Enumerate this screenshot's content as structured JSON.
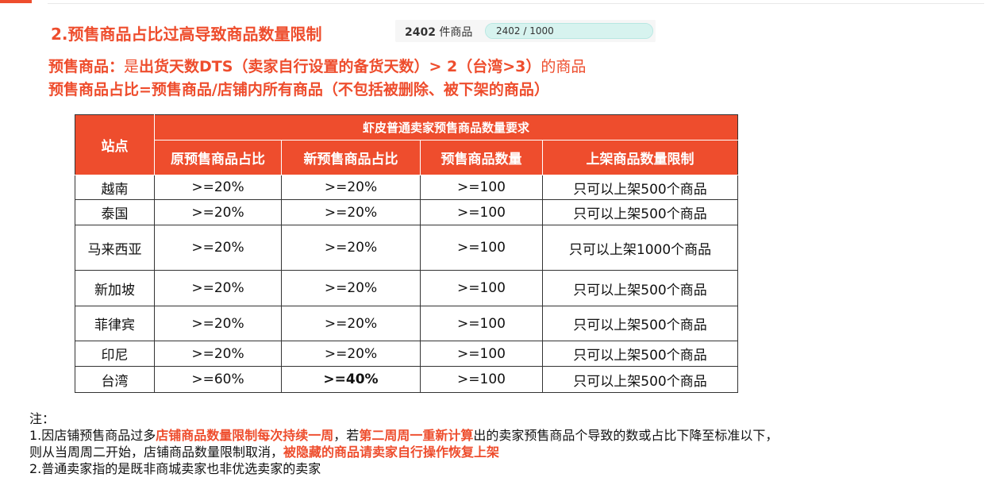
{
  "title": "2.预售商品占比过高导致商品数量限制",
  "count_badge": {
    "count_number": "2402",
    "count_unit": "件商品",
    "progress_label": "2402 / 1000",
    "progress_fraction": 1.0
  },
  "definition": {
    "line1_term": "预售商品：",
    "line1_mid": "是",
    "line1_rest": "出货天数DTS（卖家自行设置的备货天数）> 2（台湾>3）",
    "line1_end": "的商品",
    "line2": "预售商品占比=预售商品/店铺内所有商品（不包括被删除、被下架的商品）"
  },
  "table": {
    "site_header": "站点",
    "group_header": "虾皮普通卖家预售商品数量要求",
    "columns": [
      "原预售商品占比",
      "新预售商品占比",
      "预售商品数量",
      "上架商品数量限制"
    ],
    "rows": [
      {
        "site": "越南",
        "old_ratio": ">=20%",
        "new_ratio": ">=20%",
        "count": ">=100",
        "limit": "只可以上架500个商品"
      },
      {
        "site": "泰国",
        "old_ratio": ">=20%",
        "new_ratio": ">=20%",
        "count": ">=100",
        "limit": "只可以上架500个商品"
      },
      {
        "site": "马来西亚",
        "old_ratio": ">=20%",
        "new_ratio": ">=20%",
        "count": ">=100",
        "limit": "只可以上架1000个商品"
      },
      {
        "site": "新加坡",
        "old_ratio": ">=20%",
        "new_ratio": ">=20%",
        "count": ">=100",
        "limit": "只可以上架500个商品"
      },
      {
        "site": "菲律宾",
        "old_ratio": ">=20%",
        "new_ratio": ">=20%",
        "count": ">=100",
        "limit": "只可以上架500个商品"
      },
      {
        "site": "印尼",
        "old_ratio": ">=20%",
        "new_ratio": ">=20%",
        "count": ">=100",
        "limit": "只可以上架500个商品"
      },
      {
        "site": "台湾",
        "old_ratio": ">=60%",
        "new_ratio": ">=40%",
        "count": ">=100",
        "limit": "只可以上架500个商品"
      }
    ],
    "highlight_color": "#ee1c1c",
    "header_color": "#ee4d2d"
  },
  "notes": {
    "label": "注：",
    "n1_a": "1.因店铺预售商品过多",
    "n1_b": "店铺商品数量限制每次持续一周",
    "n1_c": "，若",
    "n1_d": "第二周周一重新计算",
    "n1_e": "出的卖家预售商品个导致的数或占比下降至标准以下，",
    "n1_f": "则从当周周二开始，店铺商品数量限制取消，",
    "n1_g": "被隐藏的商品请卖家自行操作恢复上架",
    "n2": "2.普通卖家指的是既非商城卖家也非优选卖家的卖家"
  }
}
